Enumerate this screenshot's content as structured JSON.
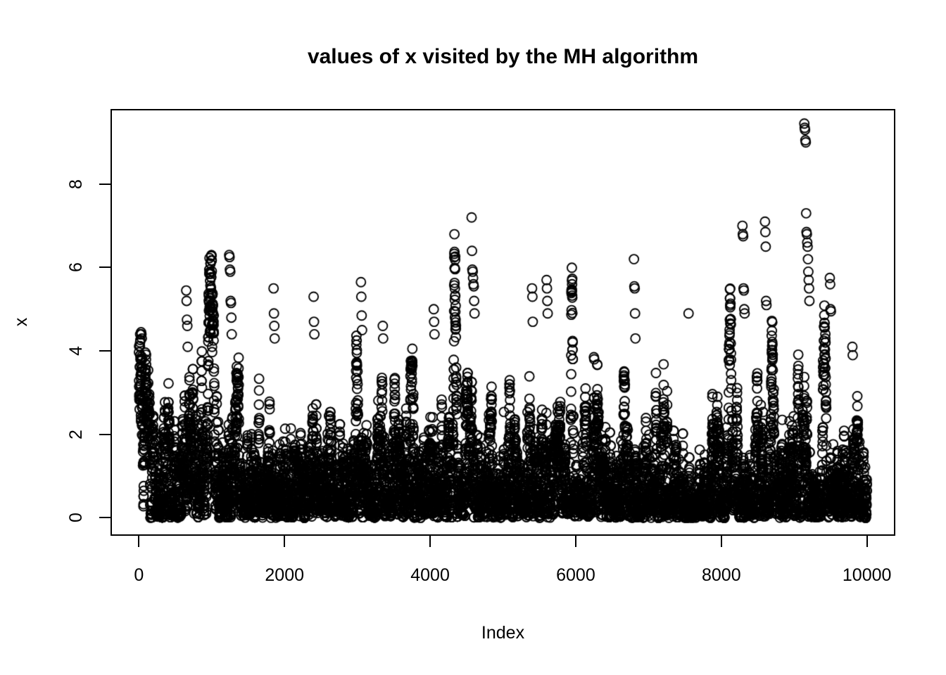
{
  "figure": {
    "background_color": "#ffffff",
    "foreground_color": "#000000"
  },
  "chart_data": {
    "type": "scatter",
    "title": "values of x visited by the MH algorithm",
    "xlabel": "Index",
    "ylabel": "x",
    "x_ticks": [
      0,
      2000,
      4000,
      6000,
      8000,
      10000
    ],
    "y_ticks": [
      0,
      2,
      4,
      6,
      8
    ],
    "xlim": [
      -390,
      10390
    ],
    "ylim": [
      -0.43,
      9.8
    ],
    "n_points": 10000,
    "grid": false,
    "legend": "none",
    "marker": {
      "shape": "open-circle",
      "radius_px": 6.5,
      "stroke_px": 1.9,
      "color": "#000000"
    },
    "series_description": "Trace of 10000 values visited by a Metropolis-Hastings sampler; mass concentrated in [0,2] (exponential-like target, mean near 1) with sporadic excursions: spikes near index 650 (5.4), 1250 (6.3), 1850 (5.5), 3050 (5.6), 4600 (7.2), 5600 (5.7), 6800 (6.2), 8300 (7.0), 8600 (7.1), 9150 (peak 9.45), 9500 (5.75)",
    "generator": {
      "algorithm": "metropolis-hastings",
      "target": "Exponential(rate=1)",
      "proposal": "gaussian-random-walk",
      "proposal_sd": 0.45,
      "start_value": 4.4,
      "n": 10000,
      "seed": 42
    },
    "highlight_points": [
      [
        30,
        4.45
      ],
      [
        35,
        4.4
      ],
      [
        40,
        4.3
      ],
      [
        45,
        3.8
      ],
      [
        50,
        3.6
      ],
      [
        650,
        5.45
      ],
      [
        655,
        5.2
      ],
      [
        660,
        4.75
      ],
      [
        665,
        4.6
      ],
      [
        670,
        4.1
      ],
      [
        1240,
        6.3
      ],
      [
        1245,
        6.25
      ],
      [
        1250,
        5.95
      ],
      [
        1255,
        5.9
      ],
      [
        1260,
        5.2
      ],
      [
        1265,
        5.15
      ],
      [
        1270,
        4.8
      ],
      [
        1275,
        4.4
      ],
      [
        1850,
        5.5
      ],
      [
        1855,
        4.9
      ],
      [
        1860,
        4.6
      ],
      [
        1865,
        4.3
      ],
      [
        2400,
        5.3
      ],
      [
        2405,
        4.7
      ],
      [
        2410,
        4.4
      ],
      [
        3050,
        5.65
      ],
      [
        3055,
        5.3
      ],
      [
        3060,
        4.85
      ],
      [
        3065,
        4.5
      ],
      [
        3350,
        4.6
      ],
      [
        3355,
        4.3
      ],
      [
        4050,
        5.0
      ],
      [
        4055,
        4.7
      ],
      [
        4060,
        4.4
      ],
      [
        4570,
        7.2
      ],
      [
        4575,
        6.4
      ],
      [
        4580,
        5.95
      ],
      [
        4585,
        5.9
      ],
      [
        4590,
        5.75
      ],
      [
        4595,
        5.6
      ],
      [
        4600,
        5.55
      ],
      [
        4605,
        5.2
      ],
      [
        4610,
        4.9
      ],
      [
        5400,
        5.5
      ],
      [
        5405,
        5.3
      ],
      [
        5410,
        4.7
      ],
      [
        5600,
        5.7
      ],
      [
        5605,
        5.5
      ],
      [
        5610,
        5.2
      ],
      [
        5615,
        4.9
      ],
      [
        6250,
        3.85
      ],
      [
        6255,
        3.8
      ],
      [
        6800,
        6.2
      ],
      [
        6805,
        5.55
      ],
      [
        6810,
        5.5
      ],
      [
        6815,
        4.9
      ],
      [
        6820,
        4.3
      ],
      [
        7550,
        4.9
      ],
      [
        8290,
        7.0
      ],
      [
        8295,
        6.8
      ],
      [
        8300,
        6.75
      ],
      [
        8305,
        5.5
      ],
      [
        8310,
        5.45
      ],
      [
        8315,
        5.0
      ],
      [
        8320,
        4.9
      ],
      [
        8600,
        7.1
      ],
      [
        8605,
        6.85
      ],
      [
        8610,
        6.5
      ],
      [
        8615,
        5.2
      ],
      [
        8620,
        5.1
      ],
      [
        9140,
        9.45
      ],
      [
        9145,
        9.35
      ],
      [
        9150,
        9.3
      ],
      [
        9155,
        9.05
      ],
      [
        9160,
        9.0
      ],
      [
        9165,
        7.3
      ],
      [
        9170,
        6.85
      ],
      [
        9175,
        6.8
      ],
      [
        9180,
        6.6
      ],
      [
        9185,
        6.5
      ],
      [
        9190,
        6.2
      ],
      [
        9195,
        5.9
      ],
      [
        9200,
        5.7
      ],
      [
        9205,
        5.5
      ],
      [
        9210,
        5.2
      ],
      [
        9490,
        5.75
      ],
      [
        9495,
        5.6
      ],
      [
        9500,
        5.0
      ],
      [
        9505,
        4.95
      ],
      [
        9800,
        4.1
      ],
      [
        9805,
        3.9
      ]
    ]
  }
}
